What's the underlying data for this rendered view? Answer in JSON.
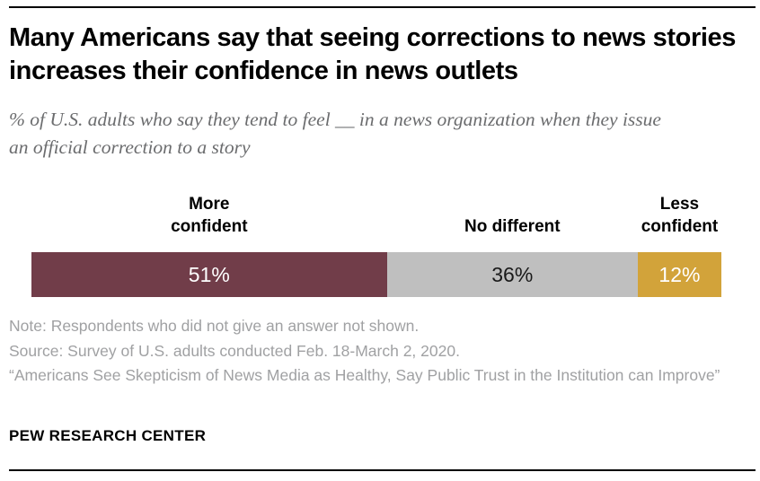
{
  "header": {
    "title": "Many Americans say that seeing corrections to news stories increases their confidence in news outlets",
    "subtitle": "% of U.S. adults who say they tend to feel __ in a news organization when they issue an official correction to a story"
  },
  "chart_data": {
    "type": "bar",
    "subtype": "stacked-horizontal-single-bar",
    "title": "Many Americans say that seeing corrections to news stories increases their confidence in news outlets",
    "xlabel": "",
    "ylabel": "",
    "categories": [
      "More confident",
      "No different",
      "Less confident"
    ],
    "values": [
      51,
      36,
      12
    ],
    "unit": "%",
    "value_labels": [
      "51%",
      "36%",
      "12%"
    ],
    "label_lines": [
      [
        "More",
        "confident"
      ],
      [
        "No different"
      ],
      [
        "Less",
        "confident"
      ]
    ],
    "colors": [
      "#713D49",
      "#BFBFBF",
      "#D2A33A"
    ],
    "value_text_colors": [
      "#FFFFFF",
      "#1A1A1A",
      "#FFFFFF"
    ],
    "axis": "none",
    "grid": false,
    "legend_position": "labels-above-segments"
  },
  "footer": {
    "note": "Note: Respondents who did not give an answer not shown.",
    "source": "Source: Survey of U.S. adults conducted Feb. 18-March 2, 2020.",
    "citation": "“Americans See Skepticism of News Media as Healthy, Say Public Trust in the Institution can Improve”",
    "brand": "PEW RESEARCH CENTER"
  }
}
